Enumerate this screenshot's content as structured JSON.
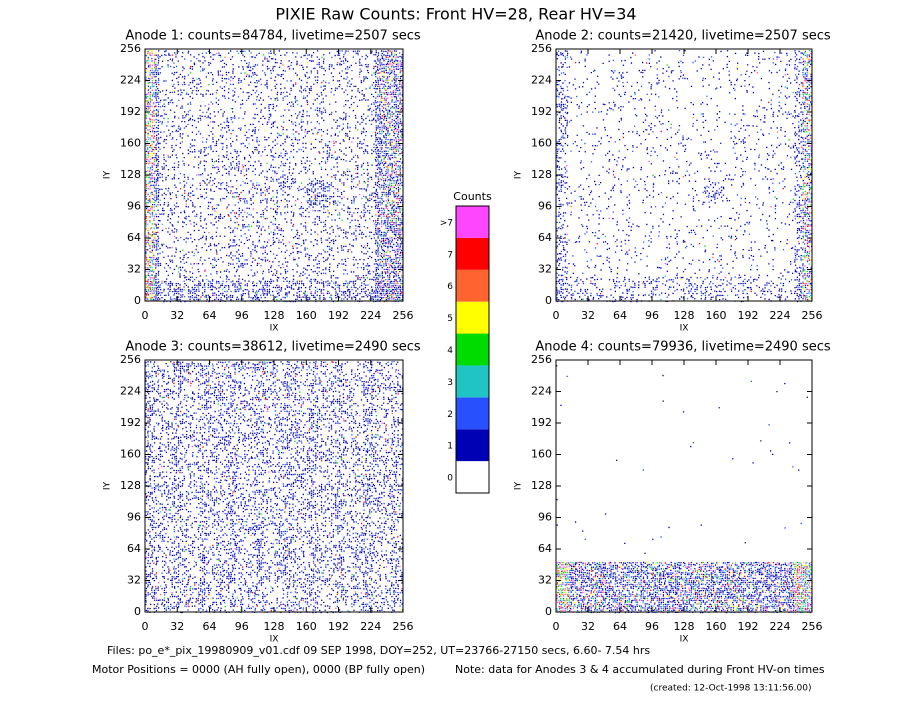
{
  "title": "PIXIE Raw Counts:  Front HV=28, Rear HV=34",
  "chart_data": [
    {
      "type": "heatmap",
      "title": "Anode 1: counts=84784, livetime=2507 secs",
      "xlabel": "IX",
      "ylabel": "IY",
      "xlim": [
        0,
        256
      ],
      "ylim": [
        0,
        256
      ],
      "xticks": [
        0,
        32,
        64,
        96,
        128,
        160,
        192,
        224,
        256
      ],
      "yticks": [
        0,
        32,
        64,
        96,
        128,
        160,
        192,
        224,
        256
      ]
    },
    {
      "type": "heatmap",
      "title": "Anode 2: counts=21420, livetime=2507 secs",
      "xlabel": "IX",
      "ylabel": "IY",
      "xlim": [
        0,
        256
      ],
      "ylim": [
        0,
        256
      ],
      "xticks": [
        0,
        32,
        64,
        96,
        128,
        160,
        192,
        224,
        256
      ],
      "yticks": [
        0,
        32,
        64,
        96,
        128,
        160,
        192,
        224,
        256
      ]
    },
    {
      "type": "heatmap",
      "title": "Anode 3: counts=38612, livetime=2490 secs",
      "xlabel": "IX",
      "ylabel": "IY",
      "xlim": [
        0,
        256
      ],
      "ylim": [
        0,
        256
      ],
      "xticks": [
        0,
        32,
        64,
        96,
        128,
        160,
        192,
        224,
        256
      ],
      "yticks": [
        0,
        32,
        64,
        96,
        128,
        160,
        192,
        224,
        256
      ]
    },
    {
      "type": "heatmap",
      "title": "Anode 4: counts=79936, livetime=2490 secs",
      "xlabel": "IX",
      "ylabel": "IY",
      "xlim": [
        0,
        256
      ],
      "ylim": [
        0,
        256
      ],
      "xticks": [
        0,
        32,
        64,
        96,
        128,
        160,
        192,
        224,
        256
      ],
      "yticks": [
        0,
        32,
        64,
        96,
        128,
        160,
        192,
        224,
        256
      ]
    }
  ],
  "colorbar": {
    "title": "Counts",
    "labels": [
      "0",
      "1",
      "2",
      "3",
      "4",
      "5",
      "6",
      "7",
      ">7"
    ],
    "colors": [
      "#ffffff",
      "#0000b4",
      "#2850ff",
      "#20c4c4",
      "#00dc00",
      "#ffff00",
      "#ff6430",
      "#ff0000",
      "#ff46ff"
    ]
  },
  "footer": {
    "files": "Files: po_e*_pix_19980909_v01.cdf    09 SEP 1998, DOY=252, UT=23766-27150 secs,  6.60- 7.54 hrs",
    "motor": "Motor Positions = 0000 (AH fully open), 0000 (BP fully open)",
    "note": "Note: data for Anodes 3 & 4 accumulated during Front HV-on times",
    "created": "(created: 12-Oct-1998 13:11:56.00)"
  }
}
